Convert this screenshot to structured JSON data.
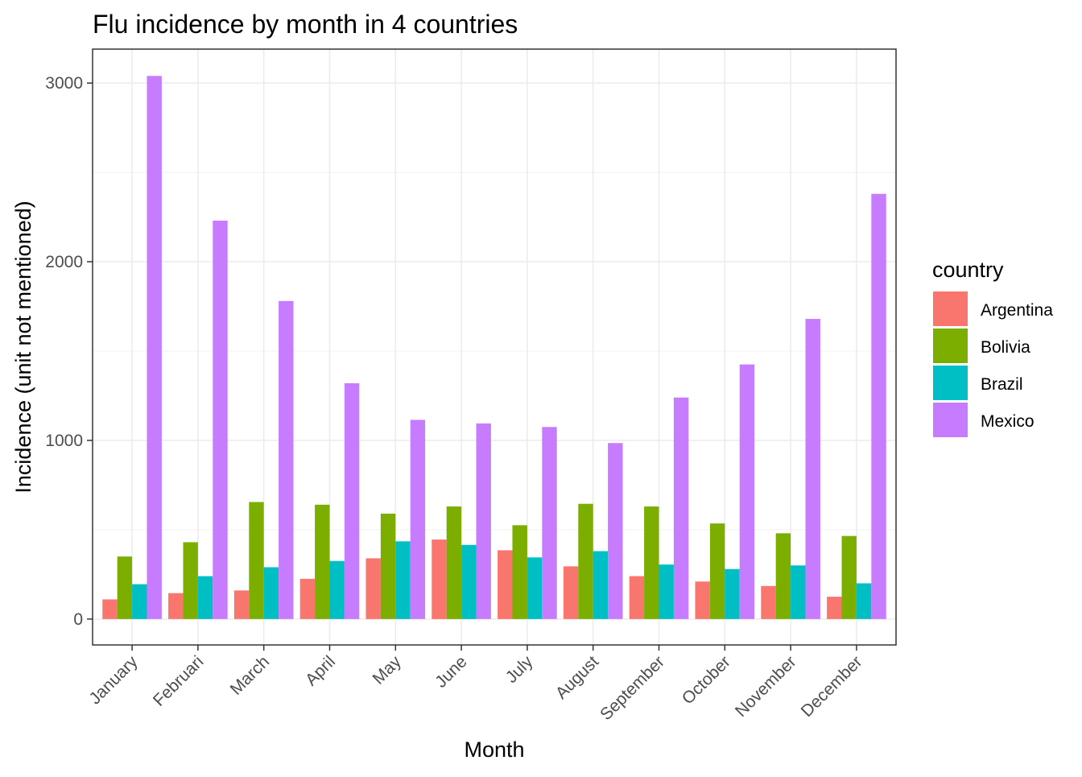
{
  "chart_data": {
    "type": "bar",
    "title": "Flu incidence by month in 4 countries",
    "xlabel": "Month",
    "ylabel": "Incidence (unit not mentioned)",
    "categories": [
      "January",
      "Februari",
      "March",
      "April",
      "May",
      "June",
      "July",
      "August",
      "September",
      "October",
      "November",
      "December"
    ],
    "series": [
      {
        "name": "Argentina",
        "color": "#F8766D",
        "values": [
          110,
          145,
          160,
          225,
          340,
          445,
          385,
          295,
          240,
          210,
          185,
          125
        ]
      },
      {
        "name": "Bolivia",
        "color": "#7CAE00",
        "values": [
          350,
          430,
          655,
          640,
          590,
          630,
          525,
          645,
          630,
          535,
          480,
          465
        ]
      },
      {
        "name": "Brazil",
        "color": "#00BFC4",
        "values": [
          195,
          240,
          290,
          325,
          435,
          415,
          345,
          380,
          305,
          280,
          300,
          200
        ]
      },
      {
        "name": "Mexico",
        "color": "#C77CFF",
        "values": [
          3040,
          2230,
          1780,
          1320,
          1115,
          1095,
          1075,
          985,
          1240,
          1425,
          1680,
          2380
        ]
      }
    ],
    "ylim": [
      -145,
      3190
    ],
    "y_ticks": [
      0,
      1000,
      2000,
      3000
    ],
    "y_tick_labels": [
      "0",
      "1000",
      "2000",
      "3000"
    ],
    "grid": true,
    "legend": {
      "title": "country",
      "position": "right"
    }
  }
}
